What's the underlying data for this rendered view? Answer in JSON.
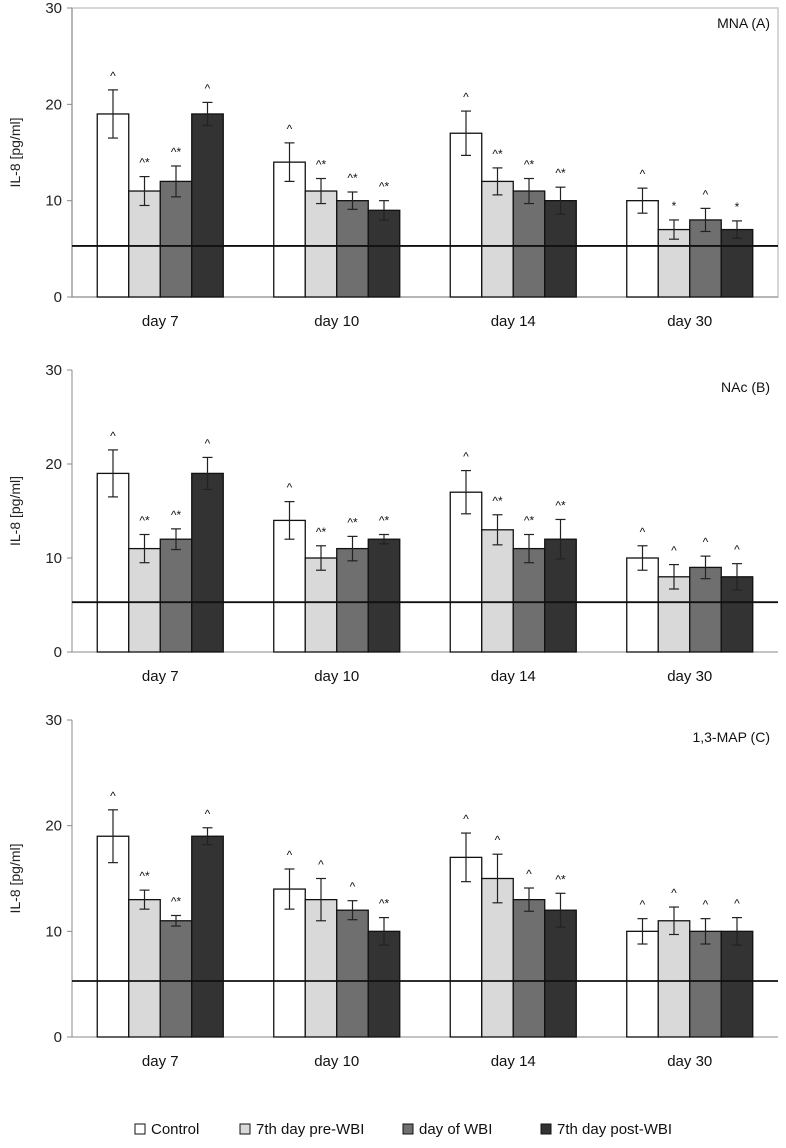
{
  "chart_data": [
    {
      "type": "bar",
      "title": "MNA (A)",
      "ylabel": "IL-8 [pg/ml]",
      "xlabel": "",
      "ylim": [
        0,
        30
      ],
      "yticks": [
        0,
        10,
        20,
        30
      ],
      "reference_line": 5.3,
      "categories": [
        "day 7",
        "day 10",
        "day 14",
        "day 30"
      ],
      "series": [
        {
          "name": "Control",
          "values": [
            19,
            14,
            17,
            10
          ],
          "errors": [
            2.5,
            2.0,
            2.3,
            1.3
          ],
          "annotations": [
            "^",
            "^",
            "^",
            "^"
          ]
        },
        {
          "name": "7th day pre-WBI",
          "values": [
            11,
            11,
            12,
            7
          ],
          "errors": [
            1.5,
            1.3,
            1.4,
            1.0
          ],
          "annotations": [
            "^*",
            "^*",
            "^*",
            "*"
          ]
        },
        {
          "name": "day of WBI",
          "values": [
            12,
            10,
            11,
            8
          ],
          "errors": [
            1.6,
            0.9,
            1.3,
            1.2
          ],
          "annotations": [
            "^*",
            "^*",
            "^*",
            "^"
          ]
        },
        {
          "name": "7th day post-WBI",
          "values": [
            19,
            9,
            10,
            7
          ],
          "errors": [
            1.2,
            1.0,
            1.4,
            0.9
          ],
          "annotations": [
            "^",
            "^*",
            "^*",
            "*"
          ]
        }
      ]
    },
    {
      "type": "bar",
      "title": "NAc (B)",
      "ylabel": "IL-8 [pg/ml]",
      "xlabel": "",
      "ylim": [
        0,
        30
      ],
      "yticks": [
        0,
        10,
        20,
        30
      ],
      "reference_line": 5.3,
      "categories": [
        "day 7",
        "day 10",
        "day 14",
        "day 30"
      ],
      "series": [
        {
          "name": "Control",
          "values": [
            19,
            14,
            17,
            10
          ],
          "errors": [
            2.5,
            2.0,
            2.3,
            1.3
          ],
          "annotations": [
            "^",
            "^",
            "^",
            "^"
          ]
        },
        {
          "name": "7th day pre-WBI",
          "values": [
            11,
            10,
            13,
            8
          ],
          "errors": [
            1.5,
            1.3,
            1.6,
            1.3
          ],
          "annotations": [
            "^*",
            "^*",
            "^*",
            "^"
          ]
        },
        {
          "name": "day of WBI",
          "values": [
            12,
            11,
            11,
            9
          ],
          "errors": [
            1.1,
            1.3,
            1.5,
            1.2
          ],
          "annotations": [
            "^*",
            "^*",
            "^*",
            "^"
          ]
        },
        {
          "name": "7th day post-WBI",
          "values": [
            19,
            12,
            12,
            8
          ],
          "errors": [
            1.7,
            0.5,
            2.1,
            1.4
          ],
          "annotations": [
            "^",
            "^*",
            "^*",
            "^"
          ]
        }
      ]
    },
    {
      "type": "bar",
      "title": "1,3-MAP (C)",
      "ylabel": "IL-8 [pg/ml]",
      "xlabel": "",
      "ylim": [
        0,
        30
      ],
      "yticks": [
        0,
        10,
        20,
        30
      ],
      "reference_line": 5.3,
      "categories": [
        "day 7",
        "day 10",
        "day 14",
        "day 30"
      ],
      "series": [
        {
          "name": "Control",
          "values": [
            19,
            14,
            17,
            10
          ],
          "errors": [
            2.5,
            1.9,
            2.3,
            1.2
          ],
          "annotations": [
            "^",
            "^",
            "^",
            "^"
          ]
        },
        {
          "name": "7th day pre-WBI",
          "values": [
            13,
            13,
            15,
            11
          ],
          "errors": [
            0.9,
            2.0,
            2.3,
            1.3
          ],
          "annotations": [
            "^*",
            "^",
            "^",
            "^"
          ]
        },
        {
          "name": "day of WBI",
          "values": [
            11,
            12,
            13,
            10
          ],
          "errors": [
            0.5,
            0.9,
            1.1,
            1.2
          ],
          "annotations": [
            "^*",
            "^",
            "^",
            "^"
          ]
        },
        {
          "name": "7th day post-WBI",
          "values": [
            19,
            10,
            12,
            10
          ],
          "errors": [
            0.8,
            1.3,
            1.6,
            1.3
          ],
          "annotations": [
            "^",
            "^*",
            "^*",
            "^"
          ]
        }
      ]
    }
  ],
  "legend": [
    {
      "name": "Control",
      "color": "#ffffff"
    },
    {
      "name": "7th day pre-WBI",
      "color": "#d9d9d9"
    },
    {
      "name": "day of WBI",
      "color": "#6f6f6f"
    },
    {
      "name": "7th day post-WBI",
      "color": "#333333"
    }
  ],
  "series_colors": [
    "#ffffff",
    "#d9d9d9",
    "#6f6f6f",
    "#333333"
  ]
}
